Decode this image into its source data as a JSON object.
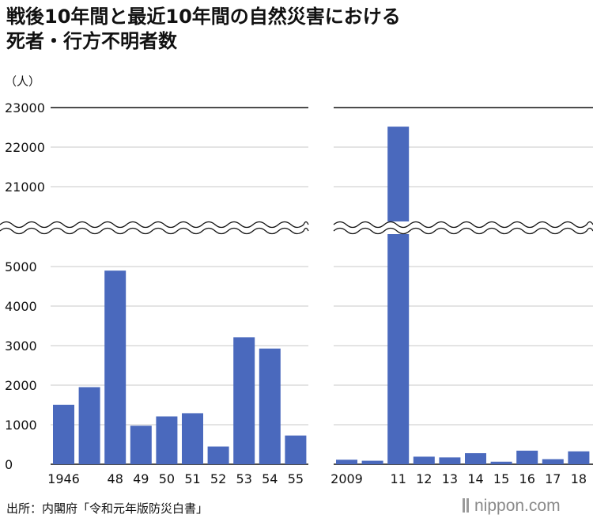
{
  "title_lines": [
    "戦後10年間と最近10年間の自然災害における",
    "死者・行方不明者数"
  ],
  "source": "出所：内閣府「令和元年版防災白書」",
  "brand": "nippon.com",
  "colors": {
    "bar": "#4a69bd",
    "grid": "#c8c8c8",
    "axis": "#111111",
    "text": "#111111"
  },
  "chart_data": {
    "type": "bar",
    "unit_label": "（人）",
    "axis_break": true,
    "yticks_upper": [
      "23000",
      "22000",
      "21000"
    ],
    "yticks_lower": [
      "5000",
      "4000",
      "3000",
      "2000",
      "1000",
      "0"
    ],
    "upper_range": [
      20500,
      23000
    ],
    "lower_range": [
      0,
      5500
    ],
    "panels": [
      {
        "labels": [
          "1946",
          "",
          "48",
          "49",
          "50",
          "51",
          "52",
          "53",
          "54",
          "55"
        ],
        "values": [
          1504,
          1950,
          4897,
          975,
          1210,
          1291,
          449,
          3212,
          2926,
          727
        ]
      },
      {
        "labels": [
          "2009",
          "",
          "11",
          "12",
          "13",
          "14",
          "15",
          "16",
          "17",
          "18"
        ],
        "values": [
          115,
          89,
          22518,
          192,
          173,
          280,
          65,
          344,
          129,
          327
        ]
      }
    ]
  }
}
